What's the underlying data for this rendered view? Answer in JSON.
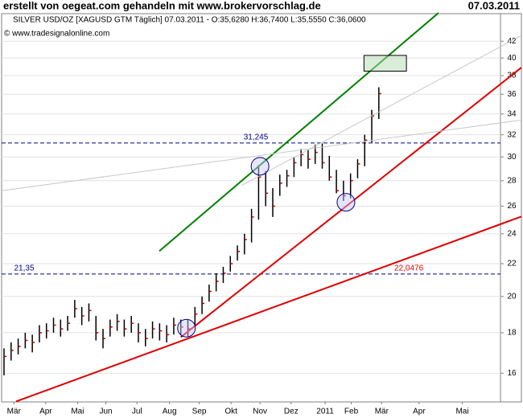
{
  "chart_data": {
    "type": "ohlc",
    "title": "erstellt von oegeat.com gehandeln mit www.brokervorschlag.de",
    "date": "07.03.2011",
    "subtitle": "SILVER USD/OZ [XAGUSD GTM  Täglich] 07.03.2011 - O:35,6280 H:36,7400 L:35,5550 C:36,0600",
    "source": "© www.tradesignalonline.com",
    "log_scale": true,
    "grid": true,
    "xlim": [
      -0.34,
      70.2
    ],
    "xticks": [
      {
        "value": 1.4,
        "label": "Mär"
      },
      {
        "value": 5.9,
        "label": "Apr"
      },
      {
        "value": 10.4,
        "label": "Mai"
      },
      {
        "value": 14.4,
        "label": "Jun"
      },
      {
        "value": 18.8,
        "label": "Jul"
      },
      {
        "value": 23.4,
        "label": "Aug"
      },
      {
        "value": 27.6,
        "label": "Sep"
      },
      {
        "value": 32.1,
        "label": "Okt"
      },
      {
        "value": 36.2,
        "label": "Nov"
      },
      {
        "value": 40.6,
        "label": "Dez"
      },
      {
        "value": 45.4,
        "label": "2011"
      },
      {
        "value": 49.1,
        "label": "Feb"
      },
      {
        "value": 53.4,
        "label": "Mär"
      },
      {
        "value": 58.7,
        "label": "Apr"
      },
      {
        "value": 64.8,
        "label": "Mai"
      }
    ],
    "ylim": [
      14.72,
      45.5
    ],
    "yticks": [
      16,
      18,
      20,
      22,
      24,
      26,
      28,
      30,
      32,
      34,
      36,
      38,
      40,
      42
    ],
    "color": "#000000",
    "high": [
      17.2,
      17.5,
      17.7,
      18.0,
      17.9,
      18.4,
      18.5,
      18.8,
      18.7,
      18.9,
      19.8,
      19.4,
      19.6,
      18.9,
      18.2,
      18.7,
      19.0,
      18.7,
      18.9,
      18.5,
      18.2,
      18.6,
      18.5,
      18.4,
      18.8,
      18.7,
      18.7,
      19.4,
      20.0,
      20.7,
      21.4,
      21.8,
      22.5,
      23.2,
      24.0,
      25.8,
      29.3,
      28.8,
      27.4,
      28.5,
      28.9,
      30.0,
      30.7,
      30.6,
      31.1,
      31.2,
      30.1,
      28.9,
      28.0,
      28.6,
      29.8,
      32.0,
      34.4,
      36.74
    ],
    "low": [
      15.9,
      16.6,
      16.9,
      17.2,
      17.0,
      17.5,
      17.7,
      18.0,
      17.8,
      18.1,
      18.8,
      18.4,
      18.6,
      17.6,
      17.2,
      17.8,
      18.1,
      17.8,
      18.0,
      17.5,
      17.3,
      17.7,
      17.6,
      17.5,
      17.9,
      17.9,
      17.8,
      18.3,
      19.0,
      19.7,
      20.3,
      20.8,
      21.5,
      22.2,
      22.6,
      23.4,
      25.0,
      26.0,
      25.2,
      26.8,
      27.5,
      28.3,
      29.2,
      29.0,
      29.4,
      29.0,
      28.0,
      27.0,
      26.4,
      26.6,
      28.2,
      29.2,
      31.3,
      33.5
    ],
    "close": [
      16.8,
      17.1,
      17.3,
      17.6,
      17.5,
      18.0,
      18.1,
      18.4,
      18.2,
      18.5,
      19.3,
      18.9,
      19.2,
      18.0,
      17.7,
      18.3,
      18.6,
      18.2,
      18.5,
      18.0,
      17.7,
      18.2,
      18.1,
      17.9,
      18.4,
      18.3,
      18.2,
      19.0,
      19.6,
      20.3,
      20.9,
      21.4,
      22.0,
      22.8,
      23.6,
      25.2,
      28.3,
      27.0,
      26.0,
      27.8,
      28.4,
      29.5,
      30.2,
      29.8,
      30.4,
      29.5,
      28.3,
      27.2,
      26.8,
      28.0,
      29.4,
      31.5,
      33.8,
      36.06
    ],
    "hlines": [
      {
        "value": 31.245,
        "label": "31,245",
        "color": "#000080"
      },
      {
        "value": 21.35,
        "label": "21,35",
        "color": "#000080"
      }
    ],
    "trendlines": [
      {
        "x": [
          21.96,
          61.43
        ],
        "y": [
          22.82,
          45.6
        ],
        "color": "#008000"
      },
      {
        "x": [
          25.0,
          73.15
        ],
        "y": [
          17.77,
          38.9
        ],
        "color": "#e00000"
      },
      {
        "x": [
          1.7,
          73.15
        ],
        "y": [
          14.74,
          25.23
        ],
        "color": "#e00000",
        "label": "22,0476"
      },
      {
        "x": [
          -0.34,
          73.15
        ],
        "y": [
          27.2,
          33.4
        ],
        "color": "#c8c8c8"
      },
      {
        "x": [
          33.56,
          73.15
        ],
        "y": [
          27.6,
          42.7
        ],
        "color": "#c8c8c8"
      }
    ],
    "circles": {
      "x": [
        25.8,
        36.2,
        48.35
      ],
      "y": [
        18.24,
        29.2,
        26.3
      ]
    },
    "box": {
      "x": [
        50.9,
        56.9
      ],
      "y": [
        38.5,
        40.3
      ]
    }
  }
}
